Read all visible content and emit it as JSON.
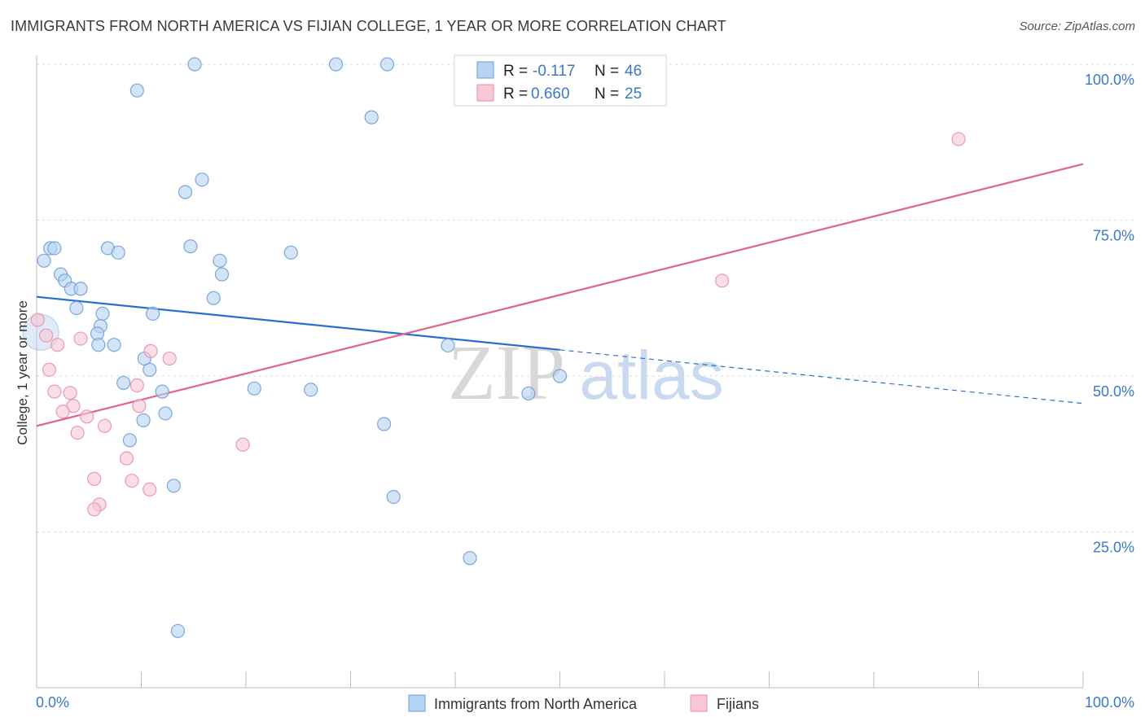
{
  "title": "IMMIGRANTS FROM NORTH AMERICA VS FIJIAN COLLEGE, 1 YEAR OR MORE CORRELATION CHART",
  "source": "Source: ZipAtlas.com",
  "watermark": {
    "part1": "ZIP",
    "part2": "atlas"
  },
  "colors": {
    "blue_fill": "#b8d2f2",
    "blue_stroke": "#6e9fdc",
    "blue_line": "#2a6fcf",
    "pink_fill": "#f8c6d4",
    "pink_stroke": "#e98fab",
    "pink_line": "#e0628b",
    "axis_label": "#3b78c8",
    "grid": "#d9d9d9"
  },
  "legend": {
    "rows": [
      {
        "series": "blue",
        "r_label": "R = ",
        "r_value": "-0.117",
        "n_label": "N = ",
        "n_value": "46"
      },
      {
        "series": "pink",
        "r_label": "R = ",
        "r_value": "0.660",
        "n_label": "N = ",
        "n_value": "25"
      }
    ]
  },
  "chart_data": {
    "type": "scatter",
    "xlabel": "",
    "ylabel": "College, 1 year or more",
    "xlim": [
      0,
      100
    ],
    "ylim": [
      0,
      100
    ],
    "x_tick_labels": [
      "0.0%",
      "100.0%"
    ],
    "y_tick_labels": [
      {
        "value": 100,
        "label": "100.0%"
      },
      {
        "value": 75,
        "label": "75.0%"
      },
      {
        "value": 50,
        "label": "50.0%"
      },
      {
        "value": 25,
        "label": "25.0%"
      }
    ],
    "series": [
      {
        "name": "Immigrants from North America",
        "color_key": "blue",
        "points": [
          [
            15.1,
            100
          ],
          [
            28.6,
            100
          ],
          [
            33.5,
            100
          ],
          [
            9.6,
            95.8
          ],
          [
            32,
            91.5
          ],
          [
            15.8,
            81.5
          ],
          [
            14.2,
            79.5
          ],
          [
            1.3,
            70.5
          ],
          [
            1.7,
            70.5
          ],
          [
            6.8,
            70.5
          ],
          [
            7.8,
            69.8
          ],
          [
            14.7,
            70.8
          ],
          [
            24.3,
            69.8
          ],
          [
            17.5,
            68.5
          ],
          [
            0.7,
            68.5
          ],
          [
            2.3,
            66.3
          ],
          [
            17.7,
            66.3
          ],
          [
            2.7,
            65.3
          ],
          [
            3.3,
            64
          ],
          [
            4.2,
            64
          ],
          [
            16.9,
            62.5
          ],
          [
            3.8,
            60.9
          ],
          [
            6.3,
            60
          ],
          [
            11.1,
            60
          ],
          [
            6.1,
            58
          ],
          [
            5.8,
            56.8
          ],
          [
            5.9,
            55
          ],
          [
            7.4,
            55
          ],
          [
            10.3,
            52.8
          ],
          [
            10.8,
            51
          ],
          [
            8.3,
            48.9
          ],
          [
            12,
            47.5
          ],
          [
            20.8,
            48
          ],
          [
            26.2,
            47.8
          ],
          [
            12.3,
            44
          ],
          [
            10.2,
            42.9
          ],
          [
            33.2,
            42.3
          ],
          [
            8.9,
            39.7
          ],
          [
            13.1,
            32.4
          ],
          [
            34.1,
            30.6
          ],
          [
            39.3,
            54.9
          ],
          [
            50,
            50
          ],
          [
            47,
            47.2
          ],
          [
            41.4,
            20.8
          ],
          [
            13.5,
            9.1
          ],
          [
            0.4,
            57
          ]
        ],
        "trend": {
          "x0": 0,
          "y0": 62.7,
          "x1": 50,
          "y1": 54.2,
          "dashed_to": {
            "x": 100,
            "y": 45.6
          }
        }
      },
      {
        "name": "Fijians",
        "color_key": "pink",
        "points": [
          [
            0.1,
            59
          ],
          [
            0.9,
            56.5
          ],
          [
            2,
            55
          ],
          [
            4.2,
            56
          ],
          [
            1.2,
            51
          ],
          [
            10.9,
            54
          ],
          [
            12.7,
            52.8
          ],
          [
            1.7,
            47.5
          ],
          [
            3.2,
            47.3
          ],
          [
            9.6,
            48.5
          ],
          [
            3.5,
            45.2
          ],
          [
            9.8,
            45.2
          ],
          [
            2.5,
            44.3
          ],
          [
            4.8,
            43.5
          ],
          [
            6.5,
            42
          ],
          [
            3.9,
            40.9
          ],
          [
            19.7,
            39
          ],
          [
            8.6,
            36.8
          ],
          [
            5.5,
            33.5
          ],
          [
            9.1,
            33.2
          ],
          [
            10.8,
            31.8
          ],
          [
            6,
            29.4
          ],
          [
            5.5,
            28.6
          ],
          [
            65.5,
            65.3
          ],
          [
            88.1,
            88
          ]
        ],
        "trend": {
          "x0": 0,
          "y0": 42,
          "x1": 100,
          "y1": 84
        }
      }
    ],
    "legend_position": "bottom"
  }
}
